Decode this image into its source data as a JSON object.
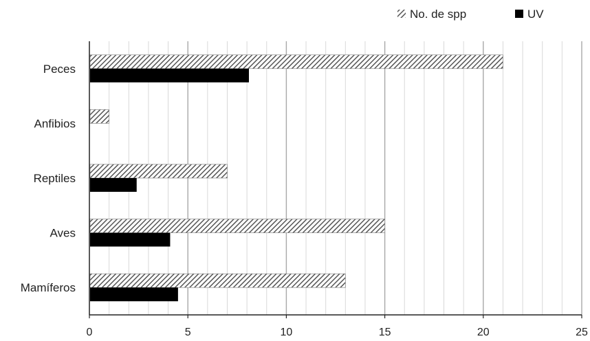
{
  "chart_data": {
    "type": "bar",
    "orientation": "horizontal",
    "categories": [
      "Mamíferos",
      "Aves",
      "Reptiles",
      "Anfibios",
      "Peces"
    ],
    "series": [
      {
        "name": "No. de spp",
        "values": [
          13,
          15,
          7,
          1,
          21
        ],
        "pattern": "diagonal-hatch",
        "color": "#555555"
      },
      {
        "name": "UV",
        "values": [
          4.5,
          4.1,
          2.4,
          0,
          8.1
        ],
        "pattern": "solid",
        "color": "#000000"
      }
    ],
    "xlim": [
      0,
      25
    ],
    "xticks": [
      0,
      5,
      10,
      15,
      20,
      25
    ],
    "minor_grid_step": 1,
    "grid": true,
    "legend_position": "top-right",
    "title": "",
    "xlabel": "",
    "ylabel": ""
  }
}
